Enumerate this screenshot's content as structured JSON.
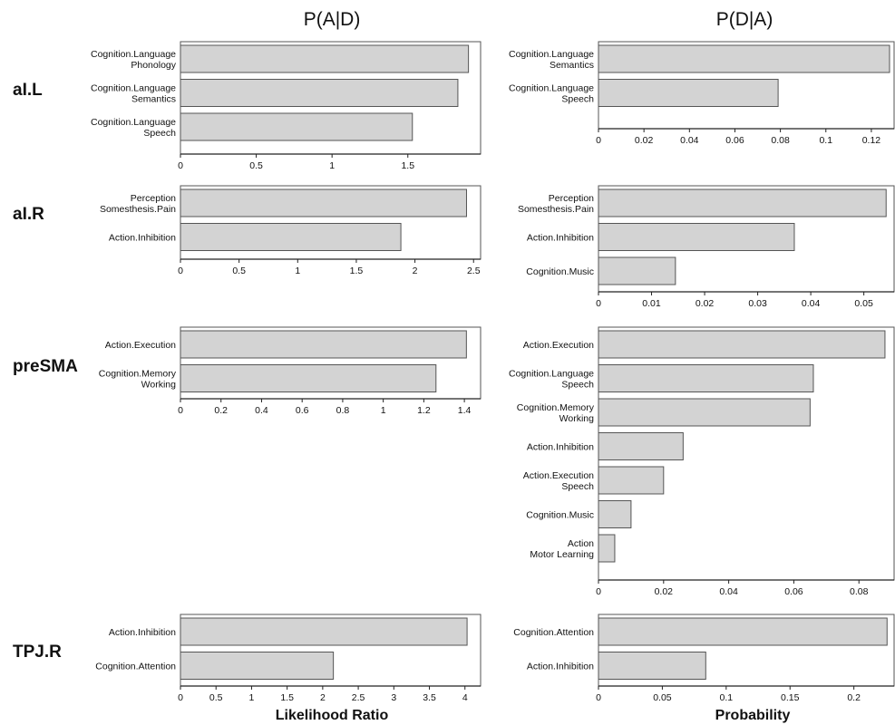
{
  "titles": {
    "left": "P(A|D)",
    "right": "P(D|A)"
  },
  "xlabels": {
    "left": "Likelihood Ratio",
    "right": "Probability"
  },
  "rows": [
    "aI.L",
    "aI.R",
    "preSMA",
    "TPJ.R"
  ],
  "chart_data": [
    {
      "type": "bar",
      "orientation": "horizontal",
      "row": "aI.L",
      "column": "P(A|D)",
      "categories": [
        [
          "Cognition.Language",
          "Phonology"
        ],
        [
          "Cognition.Language",
          "Semantics"
        ],
        [
          "Cognition.Language",
          "Speech"
        ]
      ],
      "values": [
        1.9,
        1.83,
        1.53
      ],
      "xlim": [
        0,
        1.98
      ],
      "ticks": [
        0,
        0.5,
        1,
        1.5
      ],
      "tick_labels": [
        "0",
        "0.5",
        "1",
        "1.5"
      ]
    },
    {
      "type": "bar",
      "orientation": "horizontal",
      "row": "aI.L",
      "column": "P(D|A)",
      "categories": [
        [
          "Cognition.Language",
          "Semantics"
        ],
        [
          "Cognition.Language",
          "Speech"
        ]
      ],
      "values": [
        0.128,
        0.079
      ],
      "xlim": [
        0,
        0.13
      ],
      "ticks": [
        0,
        0.02,
        0.04,
        0.06,
        0.08,
        0.1,
        0.12
      ],
      "tick_labels": [
        "0",
        "0.02",
        "0.04",
        "0.06",
        "0.08",
        "0.1",
        "0.12"
      ]
    },
    {
      "type": "bar",
      "orientation": "horizontal",
      "row": "aI.R",
      "column": "P(A|D)",
      "categories": [
        [
          "Perception",
          "Somesthesis.Pain"
        ],
        [
          "Action.Inhibition"
        ]
      ],
      "values": [
        2.44,
        1.88
      ],
      "xlim": [
        0,
        2.56
      ],
      "ticks": [
        0,
        0.5,
        1,
        1.5,
        2,
        2.5
      ],
      "tick_labels": [
        "0",
        "0.5",
        "1",
        "1.5",
        "2",
        "2.5"
      ]
    },
    {
      "type": "bar",
      "orientation": "horizontal",
      "row": "aI.R",
      "column": "P(D|A)",
      "categories": [
        [
          "Perception",
          "Somesthesis.Pain"
        ],
        [
          "Action.Inhibition"
        ],
        [
          "Cognition.Music"
        ]
      ],
      "values": [
        0.0542,
        0.0369,
        0.0145
      ],
      "xlim": [
        0,
        0.0557
      ],
      "ticks": [
        0,
        0.01,
        0.02,
        0.03,
        0.04,
        0.05
      ],
      "tick_labels": [
        "0",
        "0.01",
        "0.02",
        "0.03",
        "0.04",
        "0.05"
      ]
    },
    {
      "type": "bar",
      "orientation": "horizontal",
      "row": "preSMA",
      "column": "P(A|D)",
      "categories": [
        [
          "Action.Execution"
        ],
        [
          "Cognition.Memory",
          "Working"
        ]
      ],
      "values": [
        1.41,
        1.26
      ],
      "xlim": [
        0,
        1.48
      ],
      "ticks": [
        0,
        0.2,
        0.4,
        0.6,
        0.8,
        1,
        1.2,
        1.4
      ],
      "tick_labels": [
        "0",
        "0.2",
        "0.4",
        "0.6",
        "0.8",
        "1",
        "1.2",
        "1.4"
      ]
    },
    {
      "type": "bar",
      "orientation": "horizontal",
      "row": "preSMA",
      "column": "P(D|A)",
      "categories": [
        [
          "Action.Execution"
        ],
        [
          "Cognition.Language",
          "Speech"
        ],
        [
          "Cognition.Memory",
          "Working"
        ],
        [
          "Action.Inhibition"
        ],
        [
          "Action.Execution",
          "Speech"
        ],
        [
          "Cognition.Music"
        ],
        [
          "Action",
          "Motor Learning"
        ]
      ],
      "values": [
        0.088,
        0.066,
        0.065,
        0.026,
        0.02,
        0.01,
        0.005
      ],
      "xlim": [
        0,
        0.0908
      ],
      "ticks": [
        0,
        0.02,
        0.04,
        0.06,
        0.08
      ],
      "tick_labels": [
        "0",
        "0.02",
        "0.04",
        "0.06",
        "0.08"
      ]
    },
    {
      "type": "bar",
      "orientation": "horizontal",
      "row": "TPJ.R",
      "column": "P(A|D)",
      "categories": [
        [
          "Action.Inhibition"
        ],
        [
          "Cognition.Attention"
        ]
      ],
      "values": [
        4.03,
        2.15
      ],
      "xlim": [
        0,
        4.22
      ],
      "ticks": [
        0,
        0.5,
        1,
        1.5,
        2,
        2.5,
        3,
        3.5,
        4
      ],
      "tick_labels": [
        "0",
        "0.5",
        "1",
        "1.5",
        "2",
        "2.5",
        "3",
        "3.5",
        "4"
      ]
    },
    {
      "type": "bar",
      "orientation": "horizontal",
      "row": "TPJ.R",
      "column": "P(D|A)",
      "categories": [
        [
          "Cognition.Attention"
        ],
        [
          "Action.Inhibition"
        ]
      ],
      "values": [
        0.226,
        0.084
      ],
      "xlim": [
        0,
        0.2315
      ],
      "ticks": [
        0,
        0.05,
        0.1,
        0.15,
        0.2
      ],
      "tick_labels": [
        "0",
        "0.05",
        "0.1",
        "0.15",
        "0.2"
      ]
    }
  ]
}
